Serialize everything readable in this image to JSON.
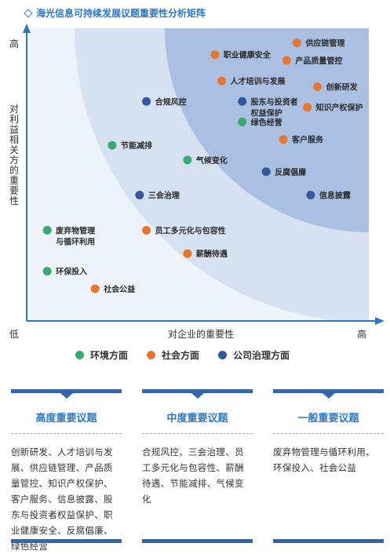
{
  "title": "海光信息可持续发展议题重要性分析矩阵",
  "colors": {
    "environment": "#3aa971",
    "social": "#e8762e",
    "governance": "#34589e"
  },
  "chart_data": {
    "type": "scatter",
    "title": "海光信息可持续发展议题重要性分析矩阵",
    "xlabel": "对企业的重要性",
    "ylabel": "对利益相关方的重要性",
    "x_low": "低",
    "x_high": "高",
    "y_high": "高",
    "xlim": [
      0,
      100
    ],
    "ylim": [
      0,
      100
    ],
    "legend_position": "bottom",
    "series": [
      {
        "name": "环境方面",
        "color": "#3aa971",
        "points": [
          {
            "label": "节能减排",
            "x": 25,
            "y": 60
          },
          {
            "label": "气候变化",
            "x": 47,
            "y": 55
          },
          {
            "label": "绿色经营",
            "x": 63,
            "y": 68
          },
          {
            "label": "废弃物管理\n与循环利用",
            "x": 6,
            "y": 31
          },
          {
            "label": "环保投入",
            "x": 6,
            "y": 17
          }
        ]
      },
      {
        "name": "社会方面",
        "color": "#e8762e",
        "points": [
          {
            "label": "供应链管理",
            "x": 79,
            "y": 95
          },
          {
            "label": "职业健康安全",
            "x": 55,
            "y": 91
          },
          {
            "label": "产品质量管控",
            "x": 76,
            "y": 89
          },
          {
            "label": "人才培训与发展",
            "x": 57,
            "y": 82
          },
          {
            "label": "创新研发",
            "x": 85,
            "y": 80
          },
          {
            "label": "知识产权保护",
            "x": 82,
            "y": 73
          },
          {
            "label": "客户服务",
            "x": 75,
            "y": 62
          },
          {
            "label": "员工多元化与包容性",
            "x": 35,
            "y": 31
          },
          {
            "label": "薪酬待遇",
            "x": 47,
            "y": 23
          },
          {
            "label": "社会公益",
            "x": 20,
            "y": 11
          }
        ]
      },
      {
        "name": "公司治理方面",
        "color": "#34589e",
        "points": [
          {
            "label": "合规风控",
            "x": 35,
            "y": 75
          },
          {
            "label": "股东与投资者\n权益保护",
            "x": 63,
            "y": 75
          },
          {
            "label": "反腐倡廉",
            "x": 70,
            "y": 51
          },
          {
            "label": "信息披露",
            "x": 83,
            "y": 43
          },
          {
            "label": "三会治理",
            "x": 33,
            "y": 43
          }
        ]
      }
    ]
  },
  "legend": [
    {
      "label": "环境方面",
      "color": "#3aa971"
    },
    {
      "label": "社会方面",
      "color": "#e8762e"
    },
    {
      "label": "公司治理方面",
      "color": "#34589e"
    }
  ],
  "cards": [
    {
      "title": "高度重要议题",
      "body": "创新研发、人才培训与发展、供应链管理、产品质量管控、知识产权保护、客户服务、信息披露、股东与投资者权益保护、职业健康安全、反腐倡廉、绿色经营"
    },
    {
      "title": "中度重要议题",
      "body": "合规风控、三会治理、员工多元化与包容性、薪酬待遇、节能减排、气候变化"
    },
    {
      "title": "一般重要议题",
      "body": "废弃物管理与循环利用、环保投入、社会公益"
    }
  ]
}
